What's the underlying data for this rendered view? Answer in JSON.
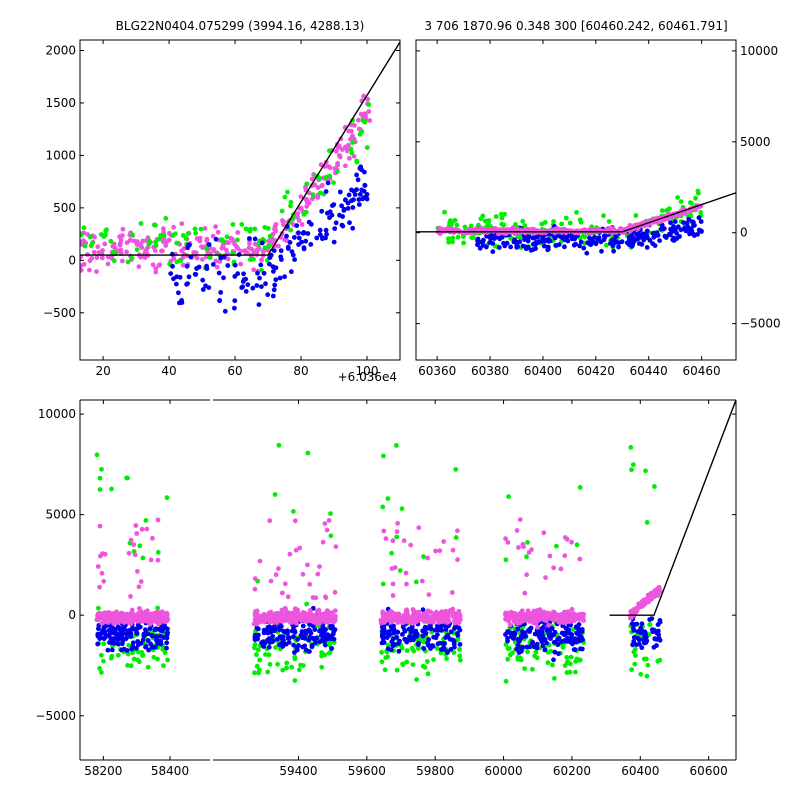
{
  "figure": {
    "title_left": "BLG22N0404.075299 (3994.16, 4288.13)",
    "title_right": "3 706 1870.96 0.348 300 [60460.242, 60461.791]",
    "offset_label": "+6.036e4"
  },
  "colors": {
    "green": "#00ee00",
    "blue": "#0000ee",
    "magenta": "#ee55dd",
    "model": "#000000",
    "background": "#ffffff"
  },
  "chart_data": [
    {
      "type": "scatter",
      "panel": "top-left zoom",
      "xlim": [
        13,
        110
      ],
      "ylim": [
        -950,
        2100
      ],
      "xticks": [
        20,
        40,
        60,
        80,
        100
      ],
      "xtick_labels": [
        "20",
        "40",
        "60",
        "80",
        "100"
      ],
      "yticks": [
        -500,
        0,
        500,
        1000,
        1500,
        2000
      ],
      "ytick_labels": [
        "−500",
        "0",
        "500",
        "1000",
        "1500",
        "2000"
      ],
      "x_offset_note": "+6.036e4",
      "model_line": {
        "x": [
          13,
          70,
          110
        ],
        "y": [
          50,
          50,
          2080
        ]
      },
      "series": [
        {
          "color_key": "magenta",
          "band": {
            "x": [
              13,
              100
            ],
            "y": [
              -450,
              600
            ]
          }
        },
        {
          "color_key": "green",
          "band": {
            "x": [
              13,
              100
            ],
            "y": [
              -600,
              1200
            ]
          }
        },
        {
          "color_key": "blue",
          "band": {
            "x": [
              40,
              100
            ],
            "y": [
              -900,
              800
            ]
          }
        }
      ]
    },
    {
      "type": "scatter",
      "panel": "top-right",
      "xlim": [
        60352,
        60473
      ],
      "ylim": [
        -7000,
        10600
      ],
      "xticks": [
        60360,
        60380,
        60400,
        60420,
        60440,
        60460
      ],
      "xtick_labels": [
        "60360",
        "60380",
        "60400",
        "60420",
        "60440",
        "60460"
      ],
      "yticks": [
        -5000,
        0,
        5000,
        10000
      ],
      "ytick_labels": [
        "−5000",
        "0",
        "5000",
        "10000"
      ],
      "model_line": {
        "x": [
          60352,
          60430,
          60473
        ],
        "y": [
          50,
          50,
          2200
        ]
      },
      "series": [
        {
          "color_key": "magenta",
          "band": {
            "x": [
              60360,
              60460
            ],
            "y": [
              -300,
              500
            ]
          }
        },
        {
          "color_key": "green",
          "band": {
            "x": [
              60360,
              60460
            ],
            "y": [
              -4000,
              2000
            ]
          }
        },
        {
          "color_key": "blue",
          "band": {
            "x": [
              60380,
              60460
            ],
            "y": [
              -4000,
              600
            ]
          }
        }
      ]
    },
    {
      "type": "scatter",
      "panel": "bottom full light curve",
      "x_segments": [
        {
          "xlim": [
            58130,
            58520
          ],
          "xticks": [
            58200,
            58400
          ],
          "xtick_labels": [
            "58200",
            "58400"
          ]
        },
        {
          "xlim": [
            59150,
            60680
          ],
          "xticks": [
            59400,
            59600,
            59800,
            60000,
            60200,
            60400,
            60600
          ],
          "xtick_labels": [
            "59400",
            "59600",
            "59800",
            "60000",
            "60200",
            "60400",
            "60600"
          ]
        }
      ],
      "ylim": [
        -7200,
        10700
      ],
      "yticks": [
        -5000,
        0,
        5000,
        10000
      ],
      "ytick_labels": [
        "−5000",
        "0",
        "5000",
        "10000"
      ],
      "model_line": {
        "x": [
          60310,
          60440,
          60680
        ],
        "y": [
          0,
          0,
          10700
        ]
      },
      "seasons": [
        {
          "x": [
            58180,
            58395
          ]
        },
        {
          "x": [
            59270,
            59510
          ]
        },
        {
          "x": [
            59640,
            59875
          ]
        },
        {
          "x": [
            60005,
            60235
          ]
        },
        {
          "x": [
            60370,
            60460
          ]
        }
      ],
      "series": [
        {
          "color_key": "magenta",
          "band": {
            "y": [
              -700,
              700
            ]
          }
        },
        {
          "color_key": "blue",
          "band": {
            "y": [
              -5000,
              800
            ]
          }
        },
        {
          "color_key": "green",
          "band": {
            "y": [
              -6500,
              3000
            ]
          }
        }
      ]
    }
  ]
}
